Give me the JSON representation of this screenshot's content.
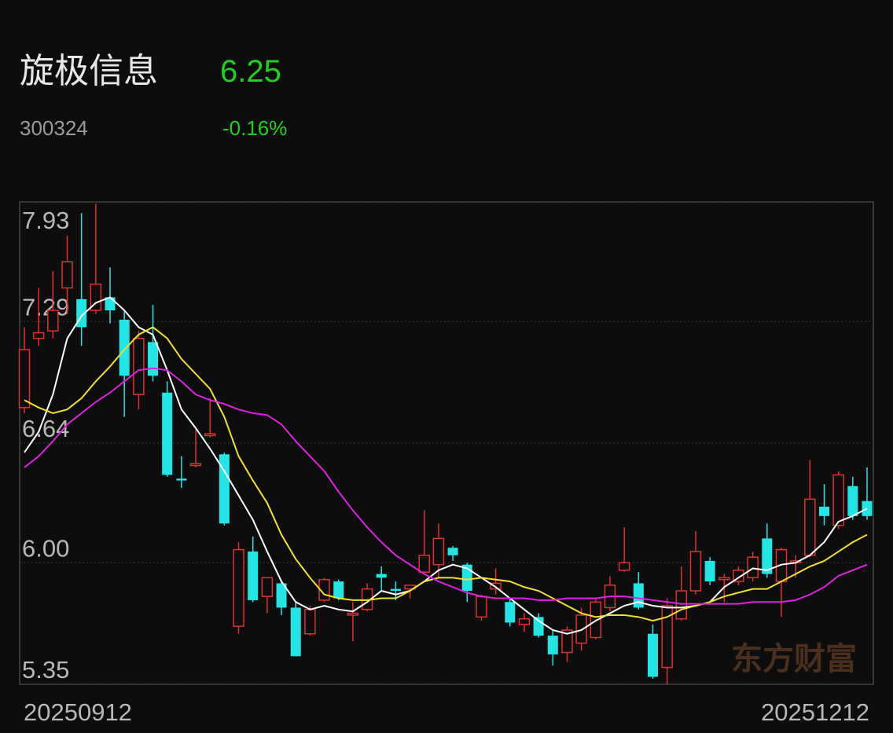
{
  "header": {
    "name": "旋极信息",
    "price": "6.25",
    "code": "300324",
    "change": "-0.16%"
  },
  "watermark": "东方财富",
  "chart_data": {
    "type": "candlestick",
    "categories": [
      "20250912",
      null,
      null,
      null,
      null,
      null,
      null,
      null,
      null,
      null,
      null,
      null,
      null,
      null,
      null,
      null,
      null,
      null,
      null,
      null,
      null,
      null,
      null,
      null,
      null,
      null,
      null,
      null,
      null,
      null,
      null,
      null,
      null,
      null,
      null,
      null,
      null,
      null,
      null,
      null,
      null,
      null,
      null,
      null,
      null,
      null,
      null,
      null,
      null,
      null,
      null,
      null,
      null,
      null,
      null,
      null,
      null,
      null,
      null,
      "20251212"
    ],
    "open": [
      6.83,
      7.2,
      7.24,
      7.47,
      7.41,
      7.35,
      7.42,
      7.3,
      6.9,
      7.18,
      6.91,
      6.45,
      6.52,
      6.68,
      6.58,
      5.66,
      6.06,
      5.82,
      5.89,
      5.76,
      5.62,
      5.8,
      5.9,
      5.72,
      5.75,
      5.94,
      5.86,
      5.86,
      5.95,
      5.99,
      6.08,
      5.99,
      5.71,
      5.86,
      5.79,
      5.67,
      5.71,
      5.61,
      5.52,
      5.57,
      5.6,
      5.76,
      5.96,
      5.89,
      5.62,
      5.44,
      5.7,
      5.85,
      6.01,
      5.91,
      5.9,
      5.92,
      6.13,
      5.9,
      6.0,
      6.04,
      6.3,
      6.2,
      6.41,
      6.33
    ],
    "high": [
      7.26,
      7.47,
      7.56,
      7.75,
      7.87,
      7.92,
      7.58,
      7.35,
      7.24,
      7.38,
      6.97,
      6.57,
      6.71,
      6.88,
      6.59,
      6.11,
      6.14,
      5.92,
      5.9,
      5.79,
      5.77,
      5.92,
      5.91,
      5.79,
      5.89,
      5.98,
      5.9,
      5.88,
      6.28,
      6.21,
      6.09,
      6.0,
      5.83,
      5.97,
      5.81,
      5.73,
      5.73,
      5.64,
      5.66,
      5.76,
      5.81,
      5.93,
      6.19,
      5.95,
      5.67,
      5.81,
      5.98,
      6.17,
      6.03,
      5.94,
      5.98,
      6.06,
      6.21,
      6.08,
      6.04,
      6.55,
      6.42,
      6.49,
      6.46,
      6.51
    ],
    "low": [
      6.8,
      7.16,
      7.2,
      7.33,
      7.16,
      7.33,
      7.28,
      6.78,
      6.82,
      6.97,
      6.46,
      6.4,
      6.51,
      6.67,
      6.2,
      5.62,
      5.79,
      5.73,
      5.72,
      5.5,
      5.61,
      5.79,
      5.8,
      5.58,
      5.74,
      5.85,
      5.8,
      5.81,
      5.94,
      5.92,
      6.01,
      5.79,
      5.69,
      5.83,
      5.66,
      5.63,
      5.6,
      5.45,
      5.47,
      5.53,
      5.59,
      5.74,
      5.95,
      5.75,
      5.38,
      5.35,
      5.69,
      5.83,
      5.88,
      5.79,
      5.88,
      5.9,
      5.92,
      5.71,
      5.92,
      6.03,
      6.2,
      6.18,
      6.23,
      6.23
    ],
    "close": [
      7.14,
      7.23,
      7.35,
      7.61,
      7.26,
      7.49,
      7.35,
      7.0,
      7.2,
      7.0,
      6.47,
      6.44,
      6.53,
      6.69,
      6.21,
      6.07,
      5.8,
      5.92,
      5.76,
      5.5,
      5.75,
      5.91,
      5.81,
      5.73,
      5.86,
      5.92,
      5.85,
      5.88,
      6.04,
      6.13,
      6.04,
      5.85,
      5.82,
      5.89,
      5.68,
      5.7,
      5.61,
      5.51,
      5.64,
      5.72,
      5.79,
      5.88,
      6.0,
      5.76,
      5.39,
      5.77,
      5.85,
      6.06,
      5.9,
      5.92,
      5.96,
      6.03,
      5.94,
      6.07,
      6.01,
      6.34,
      6.25,
      6.47,
      6.25,
      6.25
    ],
    "up_color": "#e03030",
    "down_color": "#22e6e6",
    "ma_lines": [
      {
        "color": "#ffffff",
        "values": [
          6.59,
          6.7,
          6.9,
          7.2,
          7.32,
          7.39,
          7.42,
          7.35,
          7.26,
          7.22,
          7.03,
          6.82,
          6.72,
          6.61,
          6.49,
          6.36,
          6.23,
          6.06,
          5.9,
          5.79,
          5.75,
          5.77,
          5.75,
          5.74,
          5.79,
          5.85,
          5.83,
          5.85,
          5.9,
          5.96,
          5.99,
          5.97,
          5.92,
          5.87,
          5.81,
          5.75,
          5.69,
          5.64,
          5.62,
          5.64,
          5.69,
          5.73,
          5.77,
          5.79,
          5.77,
          5.76,
          5.76,
          5.77,
          5.79,
          5.87,
          5.92,
          5.97,
          5.96,
          5.99,
          6.0,
          6.04,
          6.11,
          6.22,
          6.25,
          6.29
        ]
      },
      {
        "color": "#f0e030",
        "values": [
          6.87,
          6.83,
          6.8,
          6.82,
          6.88,
          6.97,
          7.05,
          7.14,
          7.22,
          7.26,
          7.2,
          7.09,
          7.01,
          6.93,
          6.78,
          6.57,
          6.44,
          6.32,
          6.15,
          6.02,
          5.92,
          5.83,
          5.81,
          5.8,
          5.8,
          5.81,
          5.81,
          5.85,
          5.9,
          5.92,
          5.92,
          5.91,
          5.92,
          5.91,
          5.9,
          5.87,
          5.85,
          5.81,
          5.77,
          5.73,
          5.71,
          5.72,
          5.72,
          5.71,
          5.69,
          5.71,
          5.75,
          5.77,
          5.79,
          5.82,
          5.84,
          5.86,
          5.86,
          5.9,
          5.94,
          5.98,
          6.01,
          6.06,
          6.11,
          6.15
        ]
      },
      {
        "color": "#e020e0",
        "values": [
          6.51,
          6.57,
          6.65,
          6.74,
          6.8,
          6.86,
          6.91,
          6.97,
          7.03,
          7.04,
          7.03,
          6.97,
          6.9,
          6.87,
          6.85,
          6.82,
          6.8,
          6.79,
          6.74,
          6.65,
          6.57,
          6.49,
          6.38,
          6.28,
          6.19,
          6.11,
          6.04,
          5.99,
          5.94,
          5.9,
          5.87,
          5.84,
          5.82,
          5.81,
          5.81,
          5.81,
          5.8,
          5.8,
          5.81,
          5.81,
          5.81,
          5.82,
          5.82,
          5.81,
          5.8,
          5.79,
          5.78,
          5.78,
          5.78,
          5.78,
          5.78,
          5.79,
          5.79,
          5.79,
          5.8,
          5.83,
          5.87,
          5.93,
          5.96,
          5.99
        ]
      }
    ],
    "ylim": [
      5.35,
      7.93
    ],
    "yticks": [
      5.35,
      {
        "value": 6,
        "label": "6.00"
      },
      6.64,
      7.29,
      7.93
    ],
    "grid": true
  }
}
